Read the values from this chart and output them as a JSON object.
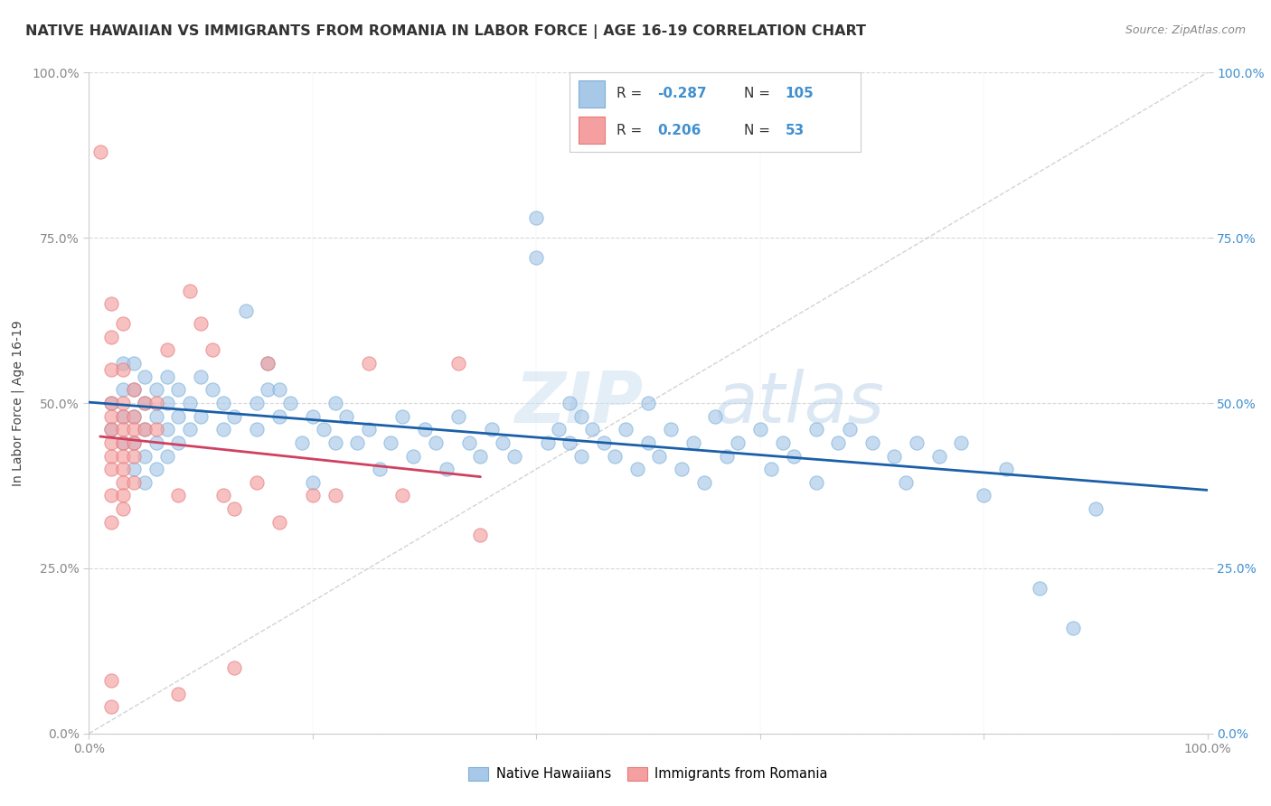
{
  "title": "NATIVE HAWAIIAN VS IMMIGRANTS FROM ROMANIA IN LABOR FORCE | AGE 16-19 CORRELATION CHART",
  "source": "Source: ZipAtlas.com",
  "ylabel": "In Labor Force | Age 16-19",
  "xlim": [
    0.0,
    1.0
  ],
  "ylim": [
    0.0,
    1.0
  ],
  "ytick_positions": [
    0.0,
    0.25,
    0.5,
    0.75,
    1.0
  ],
  "xtick_positions": [
    0.0,
    1.0
  ],
  "xtick_minor": [
    0.2,
    0.4,
    0.6,
    0.8
  ],
  "watermark_zip": "ZIP",
  "watermark_atlas": "atlas",
  "legend_r1_label": "R = ",
  "legend_r1_val": "-0.287",
  "legend_n1_label": "N = ",
  "legend_n1_val": "105",
  "legend_r2_label": "R =  ",
  "legend_r2_val": "0.206",
  "legend_n2_label": "N =  ",
  "legend_n2_val": "53",
  "blue_fill": "#a8c8e8",
  "pink_fill": "#f4a0a0",
  "blue_edge": "#7ab0d8",
  "pink_edge": "#e87878",
  "blue_line_color": "#1a5fa8",
  "pink_line_color": "#d04060",
  "diagonal_color": "#c8c8c8",
  "grid_color": "#d8d8d8",
  "right_axis_color": "#4090d0",
  "title_color": "#333333",
  "source_color": "#888888",
  "blue_scatter": [
    [
      0.02,
      0.46
    ],
    [
      0.02,
      0.5
    ],
    [
      0.03,
      0.44
    ],
    [
      0.03,
      0.48
    ],
    [
      0.03,
      0.52
    ],
    [
      0.03,
      0.56
    ],
    [
      0.04,
      0.4
    ],
    [
      0.04,
      0.44
    ],
    [
      0.04,
      0.48
    ],
    [
      0.04,
      0.52
    ],
    [
      0.04,
      0.56
    ],
    [
      0.05,
      0.38
    ],
    [
      0.05,
      0.42
    ],
    [
      0.05,
      0.46
    ],
    [
      0.05,
      0.5
    ],
    [
      0.05,
      0.54
    ],
    [
      0.06,
      0.4
    ],
    [
      0.06,
      0.44
    ],
    [
      0.06,
      0.48
    ],
    [
      0.06,
      0.52
    ],
    [
      0.07,
      0.42
    ],
    [
      0.07,
      0.46
    ],
    [
      0.07,
      0.5
    ],
    [
      0.07,
      0.54
    ],
    [
      0.08,
      0.44
    ],
    [
      0.08,
      0.48
    ],
    [
      0.08,
      0.52
    ],
    [
      0.09,
      0.46
    ],
    [
      0.09,
      0.5
    ],
    [
      0.1,
      0.54
    ],
    [
      0.1,
      0.48
    ],
    [
      0.11,
      0.52
    ],
    [
      0.12,
      0.46
    ],
    [
      0.12,
      0.5
    ],
    [
      0.13,
      0.48
    ],
    [
      0.14,
      0.64
    ],
    [
      0.15,
      0.5
    ],
    [
      0.15,
      0.46
    ],
    [
      0.16,
      0.52
    ],
    [
      0.16,
      0.56
    ],
    [
      0.17,
      0.48
    ],
    [
      0.17,
      0.52
    ],
    [
      0.18,
      0.5
    ],
    [
      0.19,
      0.44
    ],
    [
      0.2,
      0.38
    ],
    [
      0.2,
      0.48
    ],
    [
      0.21,
      0.46
    ],
    [
      0.22,
      0.44
    ],
    [
      0.22,
      0.5
    ],
    [
      0.23,
      0.48
    ],
    [
      0.24,
      0.44
    ],
    [
      0.25,
      0.46
    ],
    [
      0.26,
      0.4
    ],
    [
      0.27,
      0.44
    ],
    [
      0.28,
      0.48
    ],
    [
      0.29,
      0.42
    ],
    [
      0.3,
      0.46
    ],
    [
      0.31,
      0.44
    ],
    [
      0.32,
      0.4
    ],
    [
      0.33,
      0.48
    ],
    [
      0.34,
      0.44
    ],
    [
      0.35,
      0.42
    ],
    [
      0.36,
      0.46
    ],
    [
      0.37,
      0.44
    ],
    [
      0.38,
      0.42
    ],
    [
      0.4,
      0.78
    ],
    [
      0.4,
      0.72
    ],
    [
      0.41,
      0.44
    ],
    [
      0.42,
      0.46
    ],
    [
      0.43,
      0.5
    ],
    [
      0.43,
      0.44
    ],
    [
      0.44,
      0.48
    ],
    [
      0.44,
      0.42
    ],
    [
      0.45,
      0.46
    ],
    [
      0.46,
      0.44
    ],
    [
      0.47,
      0.42
    ],
    [
      0.48,
      0.46
    ],
    [
      0.49,
      0.4
    ],
    [
      0.5,
      0.5
    ],
    [
      0.5,
      0.44
    ],
    [
      0.51,
      0.42
    ],
    [
      0.52,
      0.46
    ],
    [
      0.53,
      0.4
    ],
    [
      0.54,
      0.44
    ],
    [
      0.55,
      0.38
    ],
    [
      0.56,
      0.48
    ],
    [
      0.57,
      0.42
    ],
    [
      0.58,
      0.44
    ],
    [
      0.6,
      0.46
    ],
    [
      0.61,
      0.4
    ],
    [
      0.62,
      0.44
    ],
    [
      0.63,
      0.42
    ],
    [
      0.65,
      0.46
    ],
    [
      0.65,
      0.38
    ],
    [
      0.67,
      0.44
    ],
    [
      0.68,
      0.46
    ],
    [
      0.7,
      0.44
    ],
    [
      0.72,
      0.42
    ],
    [
      0.73,
      0.38
    ],
    [
      0.74,
      0.44
    ],
    [
      0.76,
      0.42
    ],
    [
      0.78,
      0.44
    ],
    [
      0.8,
      0.36
    ],
    [
      0.82,
      0.4
    ],
    [
      0.85,
      0.22
    ],
    [
      0.88,
      0.16
    ],
    [
      0.9,
      0.34
    ]
  ],
  "pink_scatter": [
    [
      0.01,
      0.88
    ],
    [
      0.02,
      0.65
    ],
    [
      0.02,
      0.6
    ],
    [
      0.02,
      0.55
    ],
    [
      0.02,
      0.5
    ],
    [
      0.02,
      0.48
    ],
    [
      0.02,
      0.46
    ],
    [
      0.02,
      0.44
    ],
    [
      0.02,
      0.42
    ],
    [
      0.02,
      0.4
    ],
    [
      0.02,
      0.36
    ],
    [
      0.02,
      0.32
    ],
    [
      0.02,
      0.08
    ],
    [
      0.03,
      0.62
    ],
    [
      0.03,
      0.55
    ],
    [
      0.03,
      0.5
    ],
    [
      0.03,
      0.48
    ],
    [
      0.03,
      0.46
    ],
    [
      0.03,
      0.44
    ],
    [
      0.03,
      0.42
    ],
    [
      0.03,
      0.4
    ],
    [
      0.03,
      0.38
    ],
    [
      0.03,
      0.36
    ],
    [
      0.03,
      0.34
    ],
    [
      0.04,
      0.52
    ],
    [
      0.04,
      0.48
    ],
    [
      0.04,
      0.46
    ],
    [
      0.04,
      0.44
    ],
    [
      0.04,
      0.42
    ],
    [
      0.04,
      0.38
    ],
    [
      0.05,
      0.5
    ],
    [
      0.05,
      0.46
    ],
    [
      0.06,
      0.5
    ],
    [
      0.06,
      0.46
    ],
    [
      0.07,
      0.58
    ],
    [
      0.08,
      0.36
    ],
    [
      0.09,
      0.67
    ],
    [
      0.1,
      0.62
    ],
    [
      0.11,
      0.58
    ],
    [
      0.12,
      0.36
    ],
    [
      0.13,
      0.34
    ],
    [
      0.15,
      0.38
    ],
    [
      0.16,
      0.56
    ],
    [
      0.17,
      0.32
    ],
    [
      0.2,
      0.36
    ],
    [
      0.22,
      0.36
    ],
    [
      0.25,
      0.56
    ],
    [
      0.28,
      0.36
    ],
    [
      0.33,
      0.56
    ],
    [
      0.35,
      0.3
    ],
    [
      0.08,
      0.06
    ],
    [
      0.13,
      0.1
    ],
    [
      0.02,
      0.04
    ]
  ],
  "blue_regression": [
    -0.287,
    0.44
  ],
  "pink_regression": [
    0.206,
    0.42
  ]
}
